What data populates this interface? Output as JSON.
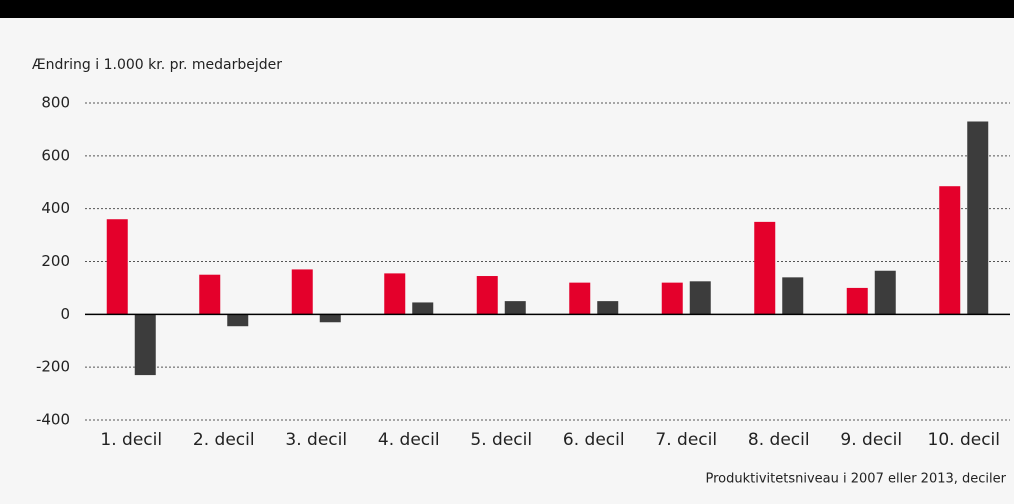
{
  "chart_data": {
    "type": "bar",
    "ylabel": "Ændring i 1.000 kr. pr. medarbejder",
    "xlabel": "Produktivitetsniveau i 2007 eller 2013, deciler",
    "categories": [
      "1. decil",
      "2. decil",
      "3. decil",
      "4. decil",
      "5. decil",
      "6. decil",
      "7. decil",
      "8. decil",
      "9. decil",
      "10. decil"
    ],
    "series": [
      {
        "color": "#e4002b",
        "values": [
          360,
          150,
          170,
          155,
          145,
          120,
          120,
          350,
          100,
          485
        ]
      },
      {
        "color": "#3c3c3c",
        "values": [
          -230,
          -45,
          -30,
          45,
          50,
          50,
          125,
          140,
          165,
          730
        ]
      }
    ],
    "ylim": [
      -400,
      800
    ],
    "yticks": [
      -400,
      -200,
      0,
      200,
      400,
      600,
      800
    ],
    "grid": true
  }
}
